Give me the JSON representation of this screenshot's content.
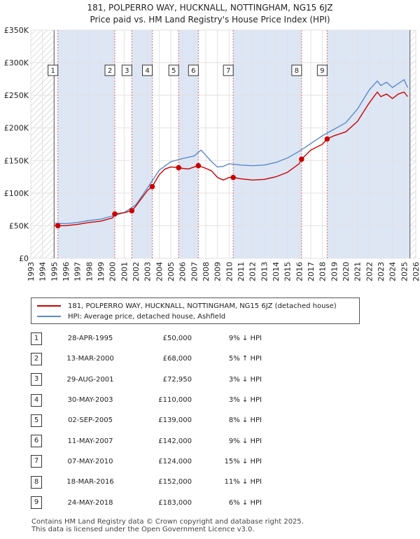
{
  "title_line1": "181, POLPERRO WAY, HUCKNALL, NOTTINGHAM, NG15 6JZ",
  "title_line2": "Price paid vs. HM Land Registry's House Price Index (HPI)",
  "chart_data": {
    "type": "line",
    "title": "181, POLPERRO WAY, HUCKNALL, NOTTINGHAM, NG15 6JZ — Price paid vs. HM Land Registry's House Price Index (HPI)",
    "xlim": [
      1993,
      2026
    ],
    "ylim": [
      0,
      350000
    ],
    "x_ticks": [
      1993,
      1994,
      1995,
      1996,
      1997,
      1998,
      1999,
      2000,
      2001,
      2002,
      2003,
      2004,
      2005,
      2006,
      2007,
      2008,
      2009,
      2010,
      2011,
      2012,
      2013,
      2014,
      2015,
      2016,
      2017,
      2018,
      2019,
      2020,
      2021,
      2022,
      2023,
      2024,
      2025,
      2026
    ],
    "y_ticks": [
      {
        "value": 0,
        "label": "£0"
      },
      {
        "value": 50000,
        "label": "£50K"
      },
      {
        "value": 100000,
        "label": "£100K"
      },
      {
        "value": 150000,
        "label": "£150K"
      },
      {
        "value": 200000,
        "label": "£200K"
      },
      {
        "value": 250000,
        "label": "£250K"
      },
      {
        "value": 300000,
        "label": "£300K"
      },
      {
        "value": 350000,
        "label": "£350K"
      }
    ],
    "grid": true,
    "data_start": 1995.0,
    "data_end": 2025.5,
    "series": [
      {
        "name": "181, POLPERRO WAY, HUCKNALL, NOTTINGHAM, NG15 6JZ (detached house)",
        "color": "#cc0000",
        "x": [
          1995.0,
          1995.32,
          1996.0,
          1997.0,
          1998.0,
          1999.0,
          2000.0,
          2000.2,
          2001.0,
          2001.66,
          2002.0,
          2002.5,
          2003.0,
          2003.41,
          2004.0,
          2004.5,
          2005.0,
          2005.67,
          2006.0,
          2006.5,
          2007.0,
          2007.36,
          2008.0,
          2008.5,
          2009.0,
          2009.5,
          2010.0,
          2010.35,
          2011.0,
          2012.0,
          2013.0,
          2014.0,
          2015.0,
          2016.0,
          2016.21,
          2017.0,
          2018.0,
          2018.4,
          2019.0,
          2020.0,
          2021.0,
          2022.0,
          2022.7,
          2023.0,
          2023.5,
          2024.0,
          2024.5,
          2025.0,
          2025.3
        ],
        "y": [
          51000,
          50000,
          50000,
          52000,
          55000,
          57000,
          62000,
          68000,
          70000,
          72950,
          80000,
          92000,
          104000,
          110000,
          128000,
          137000,
          140000,
          139000,
          138000,
          137000,
          140000,
          142000,
          138000,
          134000,
          124000,
          120000,
          124000,
          124000,
          122000,
          120000,
          121000,
          125000,
          132000,
          145000,
          152000,
          166000,
          175000,
          183000,
          188000,
          194000,
          210000,
          238000,
          255000,
          248000,
          252000,
          245000,
          252000,
          255000,
          248000
        ]
      },
      {
        "name": "HPI: Average price, detached house, Ashfield",
        "color": "#5b8ac6",
        "x": [
          1995.0,
          1996.0,
          1997.0,
          1998.0,
          1999.0,
          2000.0,
          2001.0,
          2002.0,
          2003.0,
          2004.0,
          2005.0,
          2006.0,
          2007.0,
          2007.6,
          2008.0,
          2008.5,
          2009.0,
          2009.5,
          2010.0,
          2011.0,
          2012.0,
          2013.0,
          2014.0,
          2015.0,
          2016.0,
          2017.0,
          2018.0,
          2019.0,
          2020.0,
          2021.0,
          2022.0,
          2022.7,
          2023.0,
          2023.5,
          2024.0,
          2024.5,
          2025.0,
          2025.3
        ],
        "y": [
          54000,
          53000,
          55000,
          58000,
          60000,
          65000,
          70000,
          82000,
          108000,
          135000,
          148000,
          153000,
          157000,
          166000,
          158000,
          148000,
          140000,
          141000,
          145000,
          143000,
          142000,
          143000,
          147000,
          154000,
          164000,
          176000,
          188000,
          198000,
          208000,
          229000,
          258000,
          272000,
          265000,
          270000,
          262000,
          268000,
          274000,
          262000
        ]
      }
    ],
    "sales": [
      {
        "n": "1",
        "x": 1995.32,
        "price": 50000
      },
      {
        "n": "2",
        "x": 2000.2,
        "price": 68000
      },
      {
        "n": "3",
        "x": 2001.66,
        "price": 72950
      },
      {
        "n": "4",
        "x": 2003.41,
        "price": 110000
      },
      {
        "n": "5",
        "x": 2005.67,
        "price": 139000
      },
      {
        "n": "6",
        "x": 2007.36,
        "price": 142000
      },
      {
        "n": "7",
        "x": 2010.35,
        "price": 124000
      },
      {
        "n": "8",
        "x": 2016.21,
        "price": 152000
      },
      {
        "n": "9",
        "x": 2018.4,
        "price": 183000
      }
    ],
    "shaded_ranges": [
      [
        1995.32,
        2000.2
      ],
      [
        2001.66,
        2003.41
      ],
      [
        2005.67,
        2007.36
      ],
      [
        2010.35,
        2016.21
      ],
      [
        2018.4,
        2025.5
      ]
    ],
    "hatch_ranges": [
      [
        1993,
        1995.0
      ],
      [
        2025.5,
        2026
      ]
    ]
  },
  "legend": {
    "items": [
      {
        "label": "181, POLPERRO WAY, HUCKNALL, NOTTINGHAM, NG15 6JZ (detached house)",
        "color": "#cc0000"
      },
      {
        "label": "HPI: Average price, detached house, Ashfield",
        "color": "#5b8ac6"
      }
    ]
  },
  "table": [
    {
      "n": "1",
      "date": "28-APR-1995",
      "price": "£50,000",
      "hpi": "9% ↓ HPI"
    },
    {
      "n": "2",
      "date": "13-MAR-2000",
      "price": "£68,000",
      "hpi": "5% ↑ HPI"
    },
    {
      "n": "3",
      "date": "29-AUG-2001",
      "price": "£72,950",
      "hpi": "3% ↓ HPI"
    },
    {
      "n": "4",
      "date": "30-MAY-2003",
      "price": "£110,000",
      "hpi": "3% ↓ HPI"
    },
    {
      "n": "5",
      "date": "02-SEP-2005",
      "price": "£139,000",
      "hpi": "8% ↓ HPI"
    },
    {
      "n": "6",
      "date": "11-MAY-2007",
      "price": "£142,000",
      "hpi": "9% ↓ HPI"
    },
    {
      "n": "7",
      "date": "07-MAY-2010",
      "price": "£124,000",
      "hpi": "15% ↓ HPI"
    },
    {
      "n": "8",
      "date": "18-MAR-2016",
      "price": "£152,000",
      "hpi": "11% ↓ HPI"
    },
    {
      "n": "9",
      "date": "24-MAY-2018",
      "price": "£183,000",
      "hpi": "6% ↓ HPI"
    }
  ],
  "footer": {
    "line1": "Contains HM Land Registry data © Crown copyright and database right 2025.",
    "line2": "This data is licensed under the Open Government Licence v3.0."
  }
}
